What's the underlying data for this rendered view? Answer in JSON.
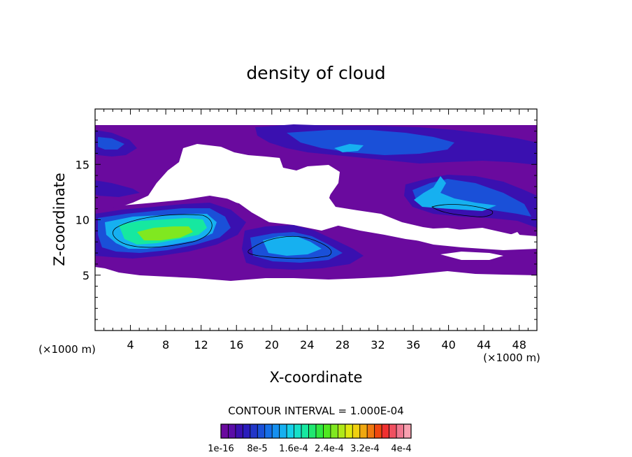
{
  "chart_data": {
    "type": "heatmap",
    "title": "density of cloud",
    "xlabel": "X-coordinate",
    "ylabel": "Z-coordinate",
    "x_unit_left": "(×1000 m)",
    "x_unit_right": "(×1000 m)",
    "xlim": [
      0,
      50
    ],
    "ylim": [
      0,
      20
    ],
    "x_ticks": [
      4,
      8,
      12,
      16,
      20,
      24,
      28,
      32,
      36,
      40,
      44,
      48
    ],
    "y_ticks": [
      5,
      10,
      15
    ],
    "contour_interval_text": "CONTOUR INTERVAL = 1.000E-04",
    "colorbar": {
      "min": 1e-16,
      "max": 0.0004,
      "labels": [
        "1e-16",
        "8e-5",
        "1.6e-4",
        "2.4e-4",
        "3.2e-4",
        "4e-4"
      ],
      "colors": [
        "#6a0a9e",
        "#5a0ca8",
        "#3a10b0",
        "#2a1cbc",
        "#2236c8",
        "#1a50d8",
        "#1670e8",
        "#1690f0",
        "#16b0f0",
        "#16d0e8",
        "#16e0c8",
        "#16e8a0",
        "#20e870",
        "#30e840",
        "#50e820",
        "#80e820",
        "#b0e818",
        "#e0e810",
        "#f0d010",
        "#f0a810",
        "#f07810",
        "#f04810",
        "#f03030",
        "#f05060",
        "#f07890",
        "#f8a0b0"
      ]
    },
    "grid": false,
    "legend": "bottom-center colorbar",
    "value_regions": [
      {
        "name": "upper-cloud-band",
        "x_range": [
          0,
          50
        ],
        "z_range": [
          12,
          18.5
        ],
        "approx_max": 0.00012
      },
      {
        "name": "left-core",
        "x_range": [
          0,
          14
        ],
        "z_range": [
          6.5,
          11
        ],
        "approx_max": 0.00015
      },
      {
        "name": "center-core",
        "x_range": [
          17,
          29
        ],
        "z_range": [
          5.5,
          9.5
        ],
        "approx_max": 0.0001
      },
      {
        "name": "right-core",
        "x_range": [
          35,
          49
        ],
        "z_range": [
          9,
          14
        ],
        "approx_max": 0.0001
      },
      {
        "name": "base-layer",
        "x_range": [
          0,
          50
        ],
        "z_range": [
          5,
          6.5
        ],
        "approx_max": 2e-05
      }
    ]
  }
}
